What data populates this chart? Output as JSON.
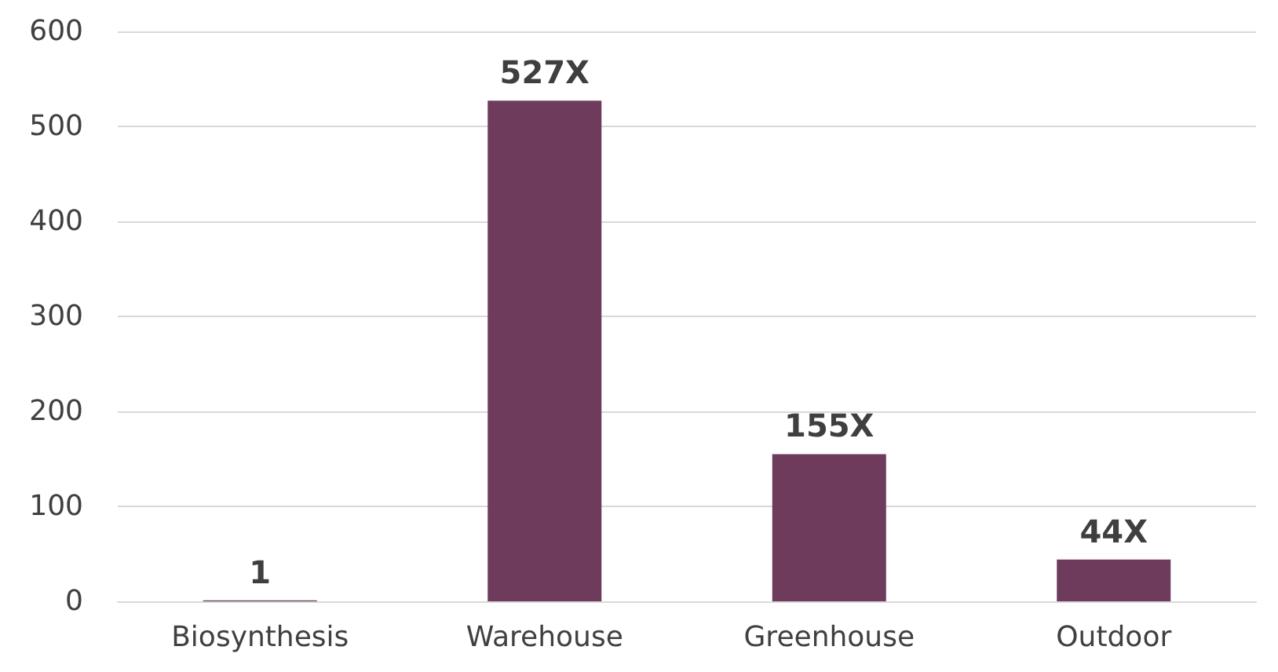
{
  "chart_data": {
    "type": "bar",
    "categories": [
      "Biosynthesis",
      "Warehouse",
      "Greenhouse",
      "Outdoor"
    ],
    "values": [
      1,
      527,
      155,
      44
    ],
    "value_labels": [
      "1",
      "527X",
      "155X",
      "44X"
    ],
    "color": "#6e3b5c",
    "ylim": [
      0,
      600
    ],
    "yticks": [
      0,
      100,
      200,
      300,
      400,
      500,
      600
    ],
    "grid": "y"
  }
}
